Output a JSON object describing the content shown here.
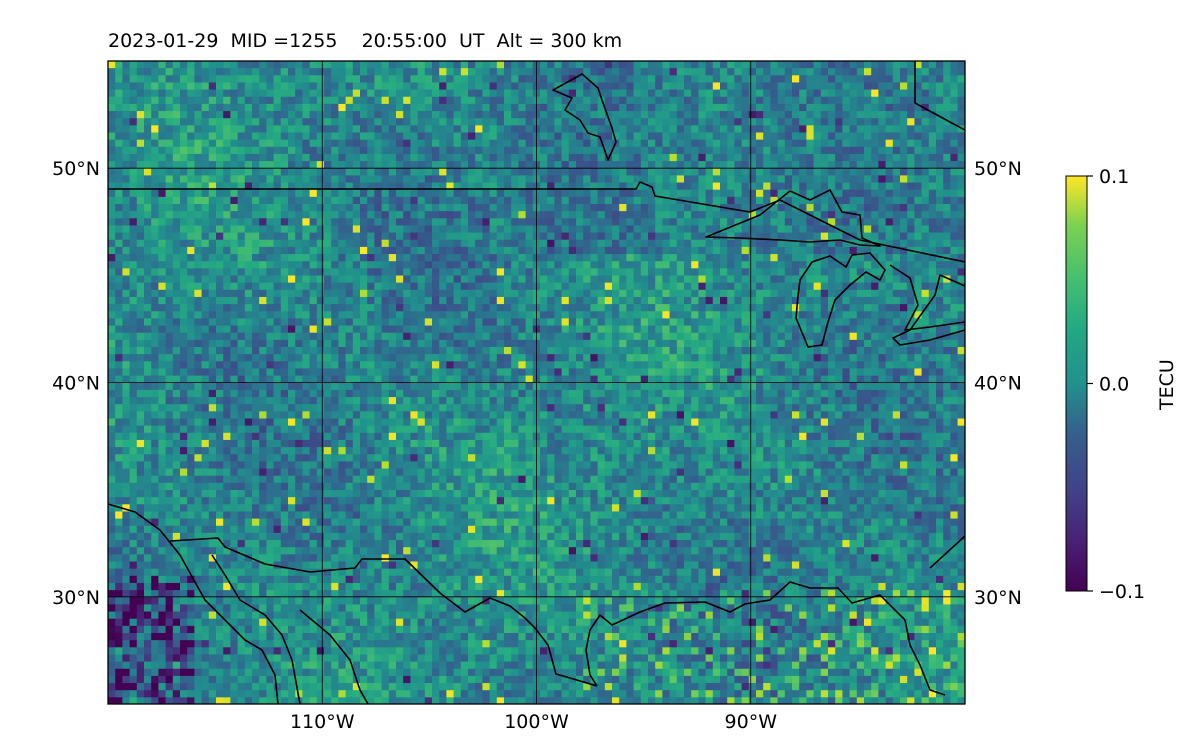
{
  "title": "2023-01-29  MID =1255    20:55:00  UT  Alt = 300 km",
  "map": {
    "lon_range": [
      -120,
      -80
    ],
    "lat_range": [
      25,
      55
    ],
    "lon_ticks": [
      {
        "value": -110,
        "label": "110°W"
      },
      {
        "value": -100,
        "label": "100°W"
      },
      {
        "value": -90,
        "label": "90°W"
      }
    ],
    "lat_ticks": [
      {
        "value": 30,
        "label": "30°N"
      },
      {
        "value": 40,
        "label": "40°N"
      },
      {
        "value": 50,
        "label": "50°N"
      }
    ]
  },
  "colorbar": {
    "label": "TECU",
    "min": -0.1,
    "max": 0.1,
    "ticks": [
      {
        "value": 0.1,
        "label": "0.1"
      },
      {
        "value": 0.0,
        "label": "0.0"
      },
      {
        "value": -0.1,
        "label": "−0.1"
      }
    ],
    "colormap": "viridis"
  }
}
